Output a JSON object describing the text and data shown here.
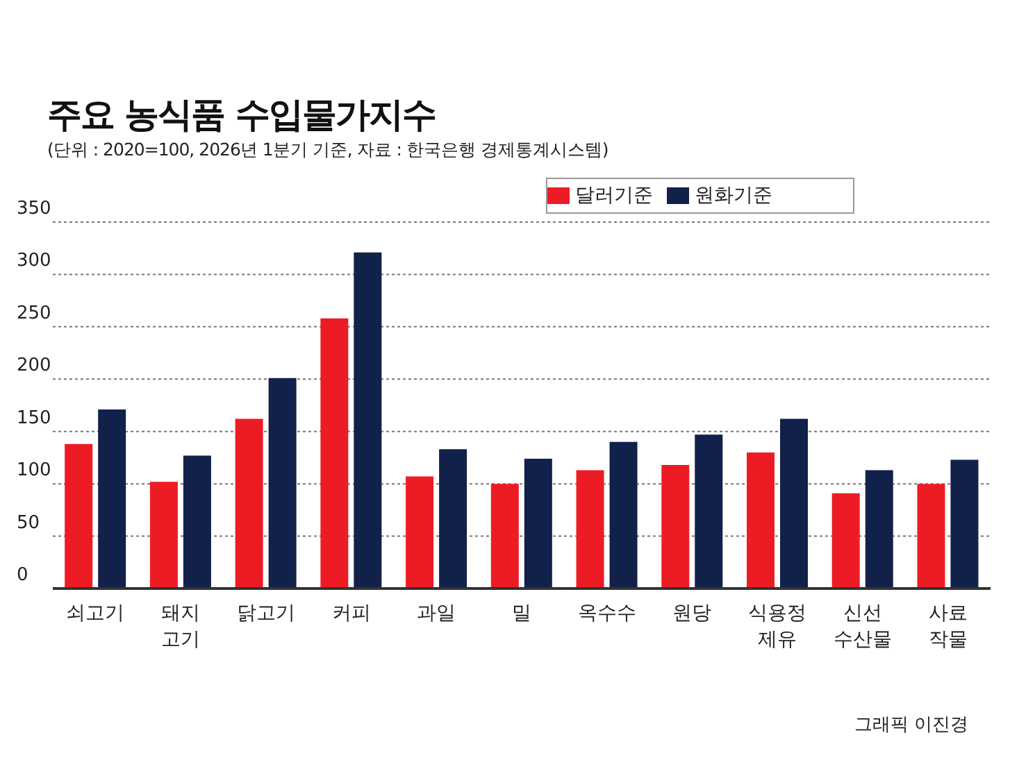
{
  "chart_data": {
    "type": "bar",
    "title": "주요 농식품 수입물가지수",
    "subtitle": "(단위 : 2020=100, 2026년 1분기 기준, 자료 : 한국은행 경제통계시스템)",
    "categories": [
      "쇠고기",
      "돼지\n고기",
      "닭고기",
      "커피",
      "과일",
      "밀",
      "옥수수",
      "원당",
      "식용정\n제유",
      "신선\n수산물",
      "사료\n작물"
    ],
    "series": [
      {
        "name": "달러기준",
        "color": "#ed1c24",
        "values": [
          138,
          102,
          162,
          258,
          107,
          100,
          113,
          118,
          130,
          91,
          100
        ]
      },
      {
        "name": "원화기준",
        "color": "#12214a",
        "values": [
          171,
          127,
          201,
          321,
          133,
          124,
          140,
          147,
          162,
          113,
          123
        ]
      }
    ],
    "ylim": [
      0,
      350
    ],
    "yticks": [
      0,
      50,
      100,
      150,
      200,
      250,
      300,
      350
    ],
    "grid": "y",
    "legend": "top right",
    "annotations": [
      "그래픽 이진경"
    ]
  }
}
